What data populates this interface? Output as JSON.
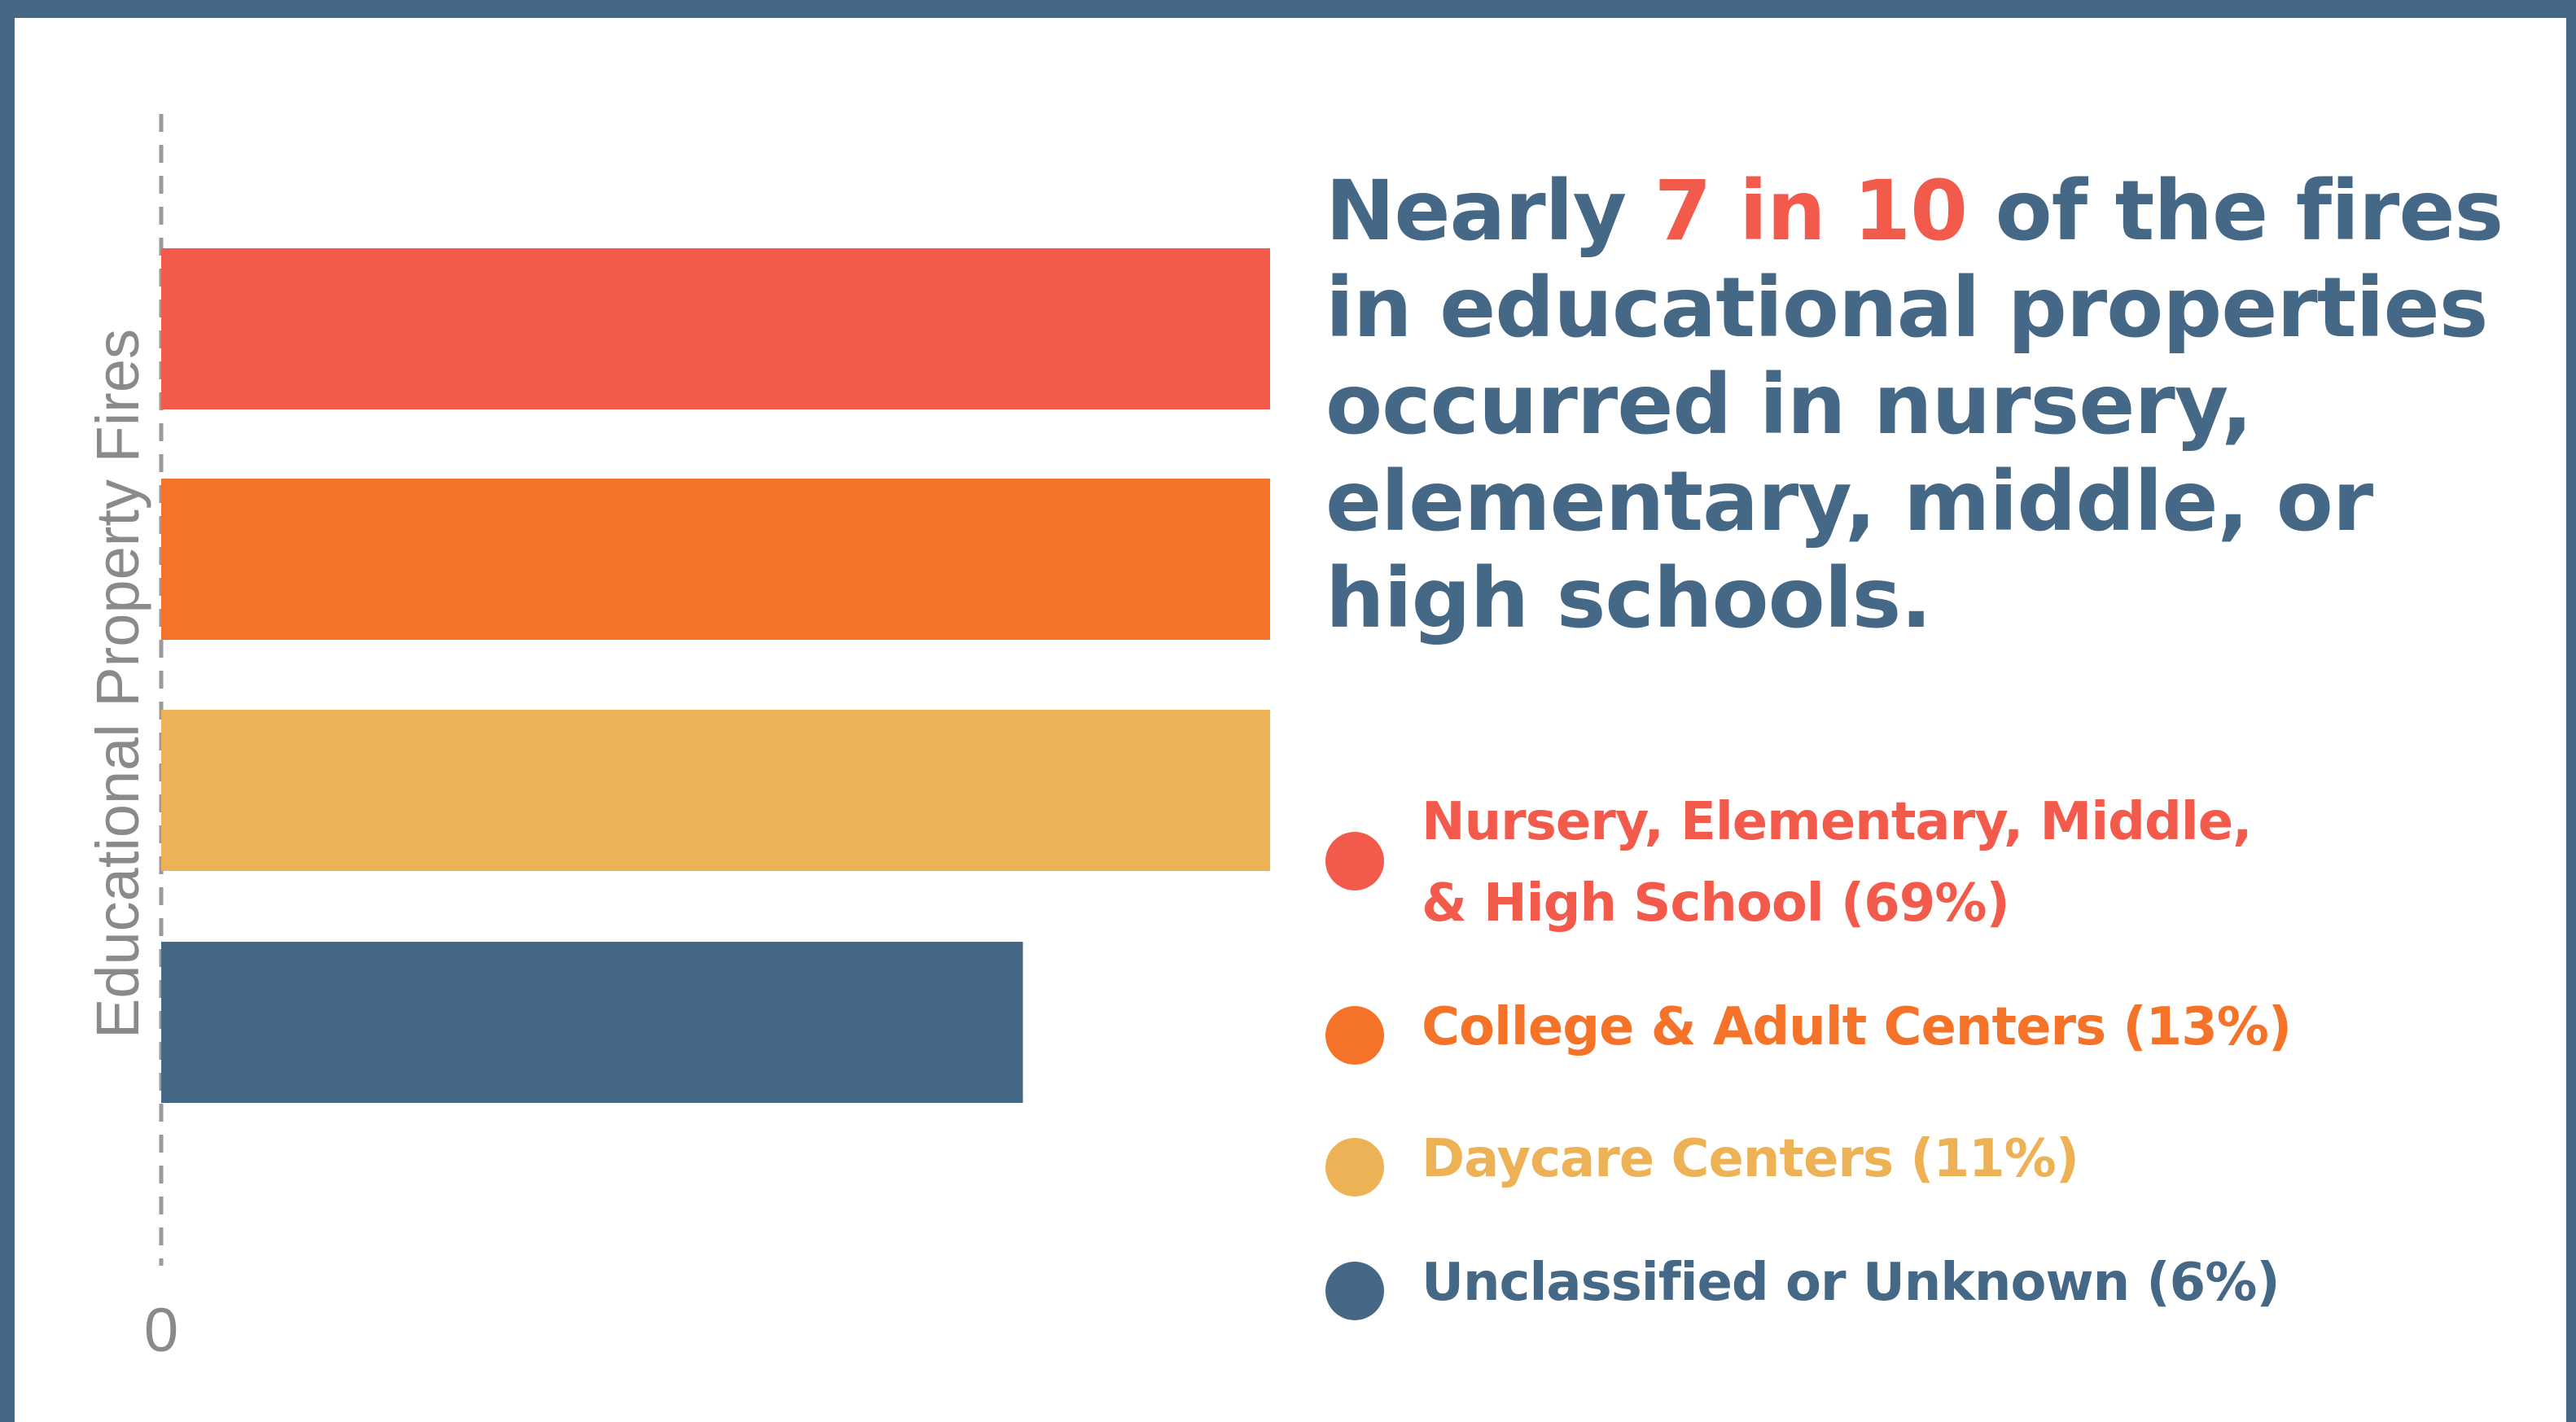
{
  "headline": {
    "before": "Nearly ",
    "highlight": "7 in 10",
    "after": " of the fires in educational properties occurred in nursery, elementary, middle, or high schools."
  },
  "chart_data": {
    "type": "bar",
    "orientation": "horizontal",
    "ylabel": "Educational Property Fires",
    "xlabel": "",
    "xlim": [
      0,
      70
    ],
    "xticks": [
      "0",
      "10",
      "20",
      "30",
      "40",
      "50",
      "60",
      "70"
    ],
    "grid": true,
    "legend_position": "right",
    "categories": [
      "Nursery, Elementary, Middle, & High School",
      "College & Adult Centers",
      "Daycare Centers",
      "Unclassified or Unknown"
    ],
    "values": [
      69,
      13,
      11,
      6
    ],
    "colors": [
      "#f25b4c",
      "#f47328",
      "#ecb255",
      "#466887"
    ]
  },
  "legend": [
    {
      "label": "Nursery, Elementary, Middle,\n& High School (69%)",
      "color": "#f25b4c"
    },
    {
      "label": "College & Adult Centers (13%)",
      "color": "#f47328"
    },
    {
      "label": "Daycare Centers (11%)",
      "color": "#ecb255"
    },
    {
      "label": "Unclassified or Unknown (6%)",
      "color": "#466887"
    }
  ]
}
